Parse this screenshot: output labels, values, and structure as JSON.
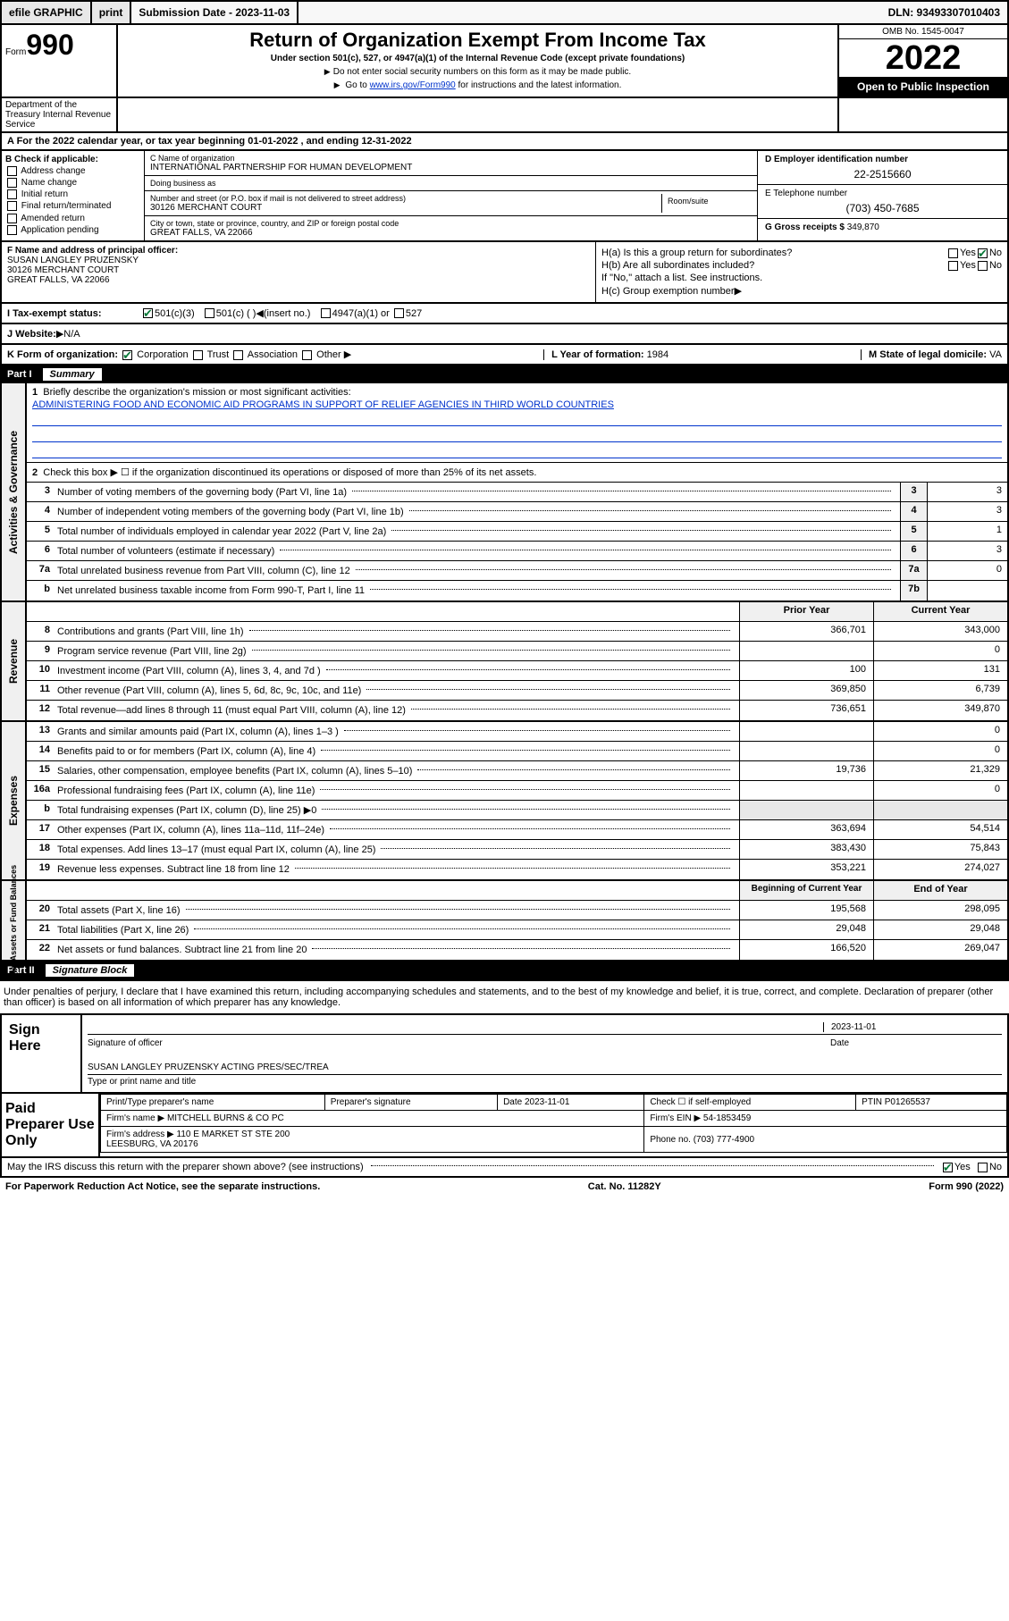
{
  "topbar": {
    "efile": "efile GRAPHIC",
    "print": "print",
    "sub_label": "Submission Date - 2023-11-03",
    "dln": "DLN: 93493307010403"
  },
  "header": {
    "form_prefix": "Form",
    "form_num": "990",
    "title": "Return of Organization Exempt From Income Tax",
    "subtitle": "Under section 501(c), 527, or 4947(a)(1) of the Internal Revenue Code (except private foundations)",
    "note1": "Do not enter social security numbers on this form as it may be made public.",
    "goto": "Go to",
    "link": "www.irs.gov/Form990",
    "note2": "for instructions and the latest information.",
    "omb": "OMB No. 1545-0047",
    "year": "2022",
    "openpub": "Open to Public Inspection",
    "dept": "Department of the Treasury Internal Revenue Service"
  },
  "period": {
    "label_a": "A For the 2022 calendar year, or tax year beginning",
    "begin": "01-01-2022",
    "label_mid": ", and ending",
    "end": "12-31-2022"
  },
  "checkB": {
    "hdr": "B Check if applicable:",
    "opts": [
      "Address change",
      "Name change",
      "Initial return",
      "Final return/terminated",
      "Amended return",
      "Application pending"
    ]
  },
  "orgC": {
    "name_lbl": "C Name of organization",
    "name": "INTERNATIONAL PARTNERSHIP FOR HUMAN DEVELOPMENT",
    "dba_lbl": "Doing business as",
    "dba": "",
    "addr_lbl": "Number and street (or P.O. box if mail is not delivered to street address)",
    "room_lbl": "Room/suite",
    "street": "30126 MERCHANT COURT",
    "city_lbl": "City or town, state or province, country, and ZIP or foreign postal code",
    "city": "GREAT FALLS, VA  22066"
  },
  "idD": {
    "ein_lbl": "D Employer identification number",
    "ein": "22-2515660",
    "tel_lbl": "E Telephone number",
    "tel": "(703) 450-7685",
    "gross_lbl": "G Gross receipts $",
    "gross": "349,870"
  },
  "sectionF": {
    "lbl": "F Name and address of principal officer:",
    "name": "SUSAN LANGLEY PRUZENSKY",
    "street": "30126 MERCHANT COURT",
    "city": "GREAT FALLS, VA  22066"
  },
  "sectionH": {
    "a_lbl": "H(a)  Is this a group return for subordinates?",
    "a_yes": "Yes",
    "a_no": "No",
    "b_lbl": "H(b)  Are all subordinates included?",
    "b_note": "If \"No,\" attach a list. See instructions.",
    "c_lbl": "H(c)  Group exemption number"
  },
  "statusI": {
    "lbl": "I   Tax-exempt status:",
    "opt1": "501(c)(3)",
    "opt2": "501(c) (  )",
    "opt2b": "(insert no.)",
    "opt3": "4947(a)(1) or",
    "opt4": "527"
  },
  "websiteJ": {
    "lbl": "J   Website:",
    "val": "N/A"
  },
  "korg": {
    "lbl": "K Form of organization:",
    "opts": [
      "Corporation",
      "Trust",
      "Association",
      "Other"
    ],
    "year_lbl": "L Year of formation:",
    "year": "1984",
    "state_lbl": "M State of legal domicile:",
    "state": "VA"
  },
  "part1": {
    "num": "Part I",
    "title": "Summary"
  },
  "summary": {
    "l1_lbl": "Briefly describe the organization's mission or most significant activities:",
    "l1_val": "ADMINISTERING FOOD AND ECONOMIC AID PROGRAMS IN SUPPORT OF RELIEF AGENCIES IN THIRD WORLD COUNTRIES",
    "l2": "Check this box ▶ ☐  if the organization discontinued its operations or disposed of more than 25% of its net assets.",
    "lines_box": [
      {
        "n": "3",
        "d": "Number of voting members of the governing body (Part VI, line 1a)",
        "bn": "3",
        "bv": "3"
      },
      {
        "n": "4",
        "d": "Number of independent voting members of the governing body (Part VI, line 1b)",
        "bn": "4",
        "bv": "3"
      },
      {
        "n": "5",
        "d": "Total number of individuals employed in calendar year 2022 (Part V, line 2a)",
        "bn": "5",
        "bv": "1"
      },
      {
        "n": "6",
        "d": "Total number of volunteers (estimate if necessary)",
        "bn": "6",
        "bv": "3"
      },
      {
        "n": "7a",
        "d": "Total unrelated business revenue from Part VIII, column (C), line 12",
        "bn": "7a",
        "bv": "0"
      },
      {
        "n": "b",
        "d": "Net unrelated business taxable income from Form 990-T, Part I, line 11",
        "bn": "7b",
        "bv": ""
      }
    ],
    "col_hdr_prior": "Prior Year",
    "col_hdr_curr": "Current Year",
    "lines_2col": [
      {
        "n": "8",
        "d": "Contributions and grants (Part VIII, line 1h)",
        "p": "366,701",
        "c": "343,000"
      },
      {
        "n": "9",
        "d": "Program service revenue (Part VIII, line 2g)",
        "p": "",
        "c": "0"
      },
      {
        "n": "10",
        "d": "Investment income (Part VIII, column (A), lines 3, 4, and 7d )",
        "p": "100",
        "c": "131"
      },
      {
        "n": "11",
        "d": "Other revenue (Part VIII, column (A), lines 5, 6d, 8c, 9c, 10c, and 11e)",
        "p": "369,850",
        "c": "6,739"
      },
      {
        "n": "12",
        "d": "Total revenue—add lines 8 through 11 (must equal Part VIII, column (A), line 12)",
        "p": "736,651",
        "c": "349,870"
      },
      {
        "n": "13",
        "d": "Grants and similar amounts paid (Part IX, column (A), lines 1–3 )",
        "p": "",
        "c": "0"
      },
      {
        "n": "14",
        "d": "Benefits paid to or for members (Part IX, column (A), line 4)",
        "p": "",
        "c": "0"
      },
      {
        "n": "15",
        "d": "Salaries, other compensation, employee benefits (Part IX, column (A), lines 5–10)",
        "p": "19,736",
        "c": "21,329"
      },
      {
        "n": "16a",
        "d": "Professional fundraising fees (Part IX, column (A), line 11e)",
        "p": "",
        "c": "0"
      },
      {
        "n": "b",
        "d": "Total fundraising expenses (Part IX, column (D), line 25) ▶0",
        "p": "",
        "c": "",
        "shade": true
      },
      {
        "n": "17",
        "d": "Other expenses (Part IX, column (A), lines 11a–11d, 11f–24e)",
        "p": "363,694",
        "c": "54,514"
      },
      {
        "n": "18",
        "d": "Total expenses. Add lines 13–17 (must equal Part IX, column (A), line 25)",
        "p": "383,430",
        "c": "75,843"
      },
      {
        "n": "19",
        "d": "Revenue less expenses. Subtract line 18 from line 12",
        "p": "353,221",
        "c": "274,027"
      }
    ],
    "col_hdr_begin": "Beginning of Current Year",
    "col_hdr_end": "End of Year",
    "lines_net": [
      {
        "n": "20",
        "d": "Total assets (Part X, line 16)",
        "p": "195,568",
        "c": "298,095"
      },
      {
        "n": "21",
        "d": "Total liabilities (Part X, line 26)",
        "p": "29,048",
        "c": "29,048"
      },
      {
        "n": "22",
        "d": "Net assets or fund balances. Subtract line 21 from line 20",
        "p": "166,520",
        "c": "269,047"
      }
    ]
  },
  "side_tabs": {
    "gov": "Activities & Governance",
    "rev": "Revenue",
    "exp": "Expenses",
    "net": "Net Assets or Fund Balances"
  },
  "part2": {
    "num": "Part II",
    "title": "Signature Block"
  },
  "sig": {
    "intro": "Under penalties of perjury, I declare that I have examined this return, including accompanying schedules and statements, and to the best of my knowledge and belief, it is true, correct, and complete. Declaration of preparer (other than officer) is based on all information of which preparer has any knowledge.",
    "sign_here": "Sign Here",
    "sig_lbl": "Signature of officer",
    "date_lbl": "Date",
    "date": "2023-11-01",
    "name": "SUSAN LANGLEY PRUZENSKY ACTING PRES/SEC/TREA",
    "name_lbl": "Type or print name and title"
  },
  "prep": {
    "lbl": "Paid Preparer Use Only",
    "r1": [
      "Print/Type preparer's name",
      "Preparer's signature",
      "Date 2023-11-01",
      "Check ☐ if self-employed",
      "PTIN P01265537"
    ],
    "firm_name_lbl": "Firm's name",
    "firm_name": "MITCHELL BURNS & CO PC",
    "firm_ein_lbl": "Firm's EIN",
    "firm_ein": "54-1853459",
    "firm_addr_lbl": "Firm's address",
    "firm_addr": "110 E MARKET ST STE 200",
    "firm_city": "LEESBURG, VA  20176",
    "phone_lbl": "Phone no.",
    "phone": "(703) 777-4900"
  },
  "footer": {
    "discuss": "May the IRS discuss this return with the preparer shown above? (see instructions)",
    "yes": "Yes",
    "no": "No",
    "paperwork": "For Paperwork Reduction Act Notice, see the separate instructions.",
    "cat": "Cat. No. 11282Y",
    "form": "Form 990 (2022)"
  },
  "colors": {
    "link": "#0033cc",
    "check": "#0a7a3a"
  }
}
